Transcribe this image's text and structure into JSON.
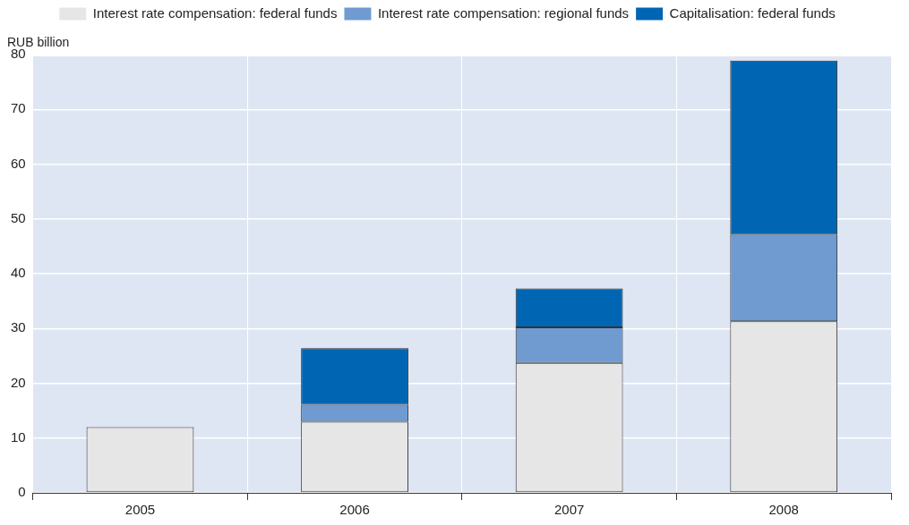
{
  "chart_data": {
    "type": "bar",
    "stacked": true,
    "ylabel": "RUB billion",
    "categories": [
      "2005",
      "2006",
      "2007",
      "2008"
    ],
    "series": [
      {
        "name": "Interest rate compensation: federal funds",
        "color": "#e6e6e6",
        "values": [
          12,
          13,
          23.7,
          31.3
        ]
      },
      {
        "name": "Interest rate compensation: regional funds",
        "color": "#6f9bd1",
        "values": [
          null,
          3.1,
          6.5,
          15.8
        ]
      },
      {
        "name": "Capitalisation: federal funds",
        "color": "#0066b3",
        "values": [
          null,
          10.3,
          7.1,
          31.8
        ]
      }
    ],
    "ylim": [
      0,
      80
    ],
    "yticks": [
      0,
      10,
      20,
      30,
      40,
      50,
      60,
      70,
      80
    ],
    "grid": true,
    "legend": "top"
  }
}
